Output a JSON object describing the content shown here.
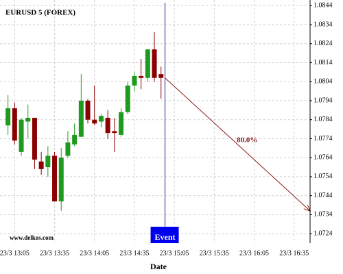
{
  "chart_data": {
    "type": "candlestick",
    "title": "EURUSD 5 (FOREX)",
    "x_label": "Date",
    "watermark": "www.delkos.com",
    "up_color": "#1e9a1e",
    "down_color": "#8b0000",
    "grid": true,
    "x": [
      "23/3 13:00",
      "23/3 13:05",
      "23/3 13:10",
      "23/3 13:15",
      "23/3 13:20",
      "23/3 13:25",
      "23/3 13:30",
      "23/3 13:35",
      "23/3 13:40",
      "23/3 13:45",
      "23/3 13:50",
      "23/3 13:55",
      "23/3 14:00",
      "23/3 14:05",
      "23/3 14:10",
      "23/3 14:15",
      "23/3 14:20",
      "23/3 14:25",
      "23/3 14:30",
      "23/3 14:35",
      "23/3 14:40",
      "23/3 14:45",
      "23/3 14:50",
      "23/3 14:55"
    ],
    "open": [
      1.0781,
      1.079,
      1.0767,
      1.0783,
      1.0785,
      1.0762,
      1.0759,
      1.0765,
      1.0741,
      1.0765,
      1.0771,
      1.0775,
      1.0794,
      1.0784,
      1.0783,
      1.0785,
      1.0778,
      1.0776,
      1.0788,
      1.0802,
      1.0807,
      1.0806,
      1.0821,
      1.0808
    ],
    "high": [
      1.0797,
      1.0793,
      1.0785,
      1.0792,
      1.0785,
      1.0767,
      1.077,
      1.0767,
      1.0769,
      1.0778,
      1.0782,
      1.0808,
      1.0795,
      1.0802,
      1.0787,
      1.0789,
      1.0785,
      1.079,
      1.0804,
      1.0809,
      1.0816,
      1.0821,
      1.083,
      1.0812
    ],
    "low": [
      1.0776,
      1.0771,
      1.0765,
      1.0774,
      1.0758,
      1.0755,
      1.0754,
      1.0741,
      1.0736,
      1.0764,
      1.077,
      1.0775,
      1.0782,
      1.0781,
      1.078,
      1.0774,
      1.0767,
      1.0775,
      1.0787,
      1.0799,
      1.08,
      1.0804,
      1.0804,
      1.0795
    ],
    "close": [
      1.079,
      1.0773,
      1.0784,
      1.0785,
      1.0763,
      1.0758,
      1.0765,
      1.0741,
      1.0764,
      1.0772,
      1.0776,
      1.0794,
      1.0784,
      1.0782,
      1.0786,
      1.0777,
      1.0777,
      1.0788,
      1.0802,
      1.0807,
      1.0806,
      1.0821,
      1.0806,
      1.0806
    ],
    "xlim": [
      "23/3 12:54",
      "23/3 16:47"
    ],
    "xticks": [
      "23/3 13:05",
      "23/3 13:35",
      "23/3 14:05",
      "23/3 14:35",
      "23/3 15:05",
      "23/3 15:35",
      "23/3 16:05",
      "23/3 16:35"
    ],
    "ylim": [
      1.0719,
      1.0847
    ],
    "yticks": [
      1.0724,
      1.0734,
      1.0744,
      1.0754,
      1.0764,
      1.0774,
      1.0784,
      1.0794,
      1.0804,
      1.0814,
      1.0824,
      1.0834,
      1.0844
    ],
    "event": {
      "x": "23/3 14:58",
      "label": "Event"
    },
    "arrow": {
      "start": [
        "23/3 14:58",
        1.0806
      ],
      "end": [
        "23/3 16:47",
        1.0736
      ],
      "label": "80.0%"
    }
  }
}
